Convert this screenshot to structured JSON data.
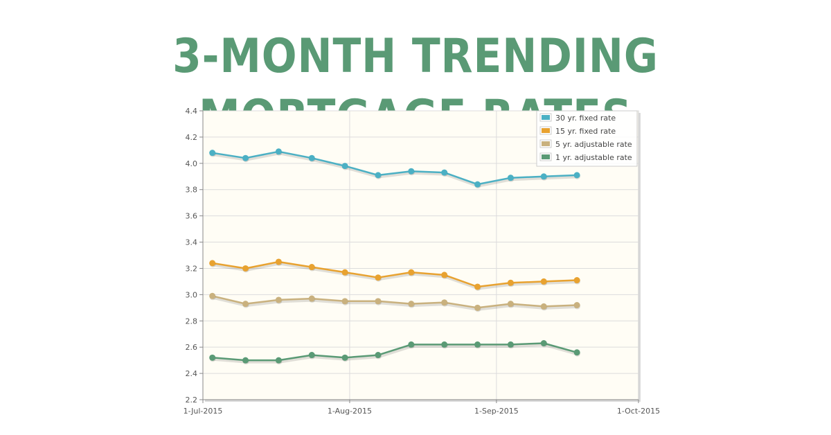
{
  "page": {
    "title": "3-MONTH TRENDING MORTGAGE RATES"
  },
  "chart_data": {
    "type": "line",
    "x_ticks": [
      "1-Jul-2015",
      "1-Aug-2015",
      "1-Sep-2015",
      "1-Oct-2015"
    ],
    "xlim": [
      "2015-07-01",
      "2015-10-01"
    ],
    "ylim": [
      2.2,
      4.4
    ],
    "y_ticks": [
      "2.2",
      "2.4",
      "2.6",
      "2.8",
      "3.0",
      "3.2",
      "3.4",
      "3.6",
      "3.8",
      "4.0",
      "4.2",
      "4.4"
    ],
    "x": [
      "2015-07-03",
      "2015-07-10",
      "2015-07-17",
      "2015-07-24",
      "2015-07-31",
      "2015-08-07",
      "2015-08-14",
      "2015-08-21",
      "2015-08-28",
      "2015-09-04",
      "2015-09-11",
      "2015-09-18"
    ],
    "grid": true,
    "legend_position": "top-right",
    "series": [
      {
        "name": "30 yr. fixed rate",
        "color": "#4bb0c4",
        "values": [
          4.08,
          4.04,
          4.09,
          4.04,
          3.98,
          3.91,
          3.94,
          3.93,
          3.84,
          3.89,
          3.9,
          3.91
        ]
      },
      {
        "name": "15 yr. fixed rate",
        "color": "#e8a230",
        "values": [
          3.24,
          3.2,
          3.25,
          3.21,
          3.17,
          3.13,
          3.17,
          3.15,
          3.06,
          3.09,
          3.1,
          3.11
        ]
      },
      {
        "name": "5 yr. adjustable rate",
        "color": "#c9b17e",
        "values": [
          2.99,
          2.93,
          2.96,
          2.97,
          2.95,
          2.95,
          2.93,
          2.94,
          2.9,
          2.93,
          2.91,
          2.92
        ]
      },
      {
        "name": "1 yr. adjustable rate",
        "color": "#5a9a75",
        "values": [
          2.52,
          2.5,
          2.5,
          2.54,
          2.52,
          2.54,
          2.62,
          2.62,
          2.62,
          2.62,
          2.63,
          2.56
        ]
      }
    ]
  }
}
